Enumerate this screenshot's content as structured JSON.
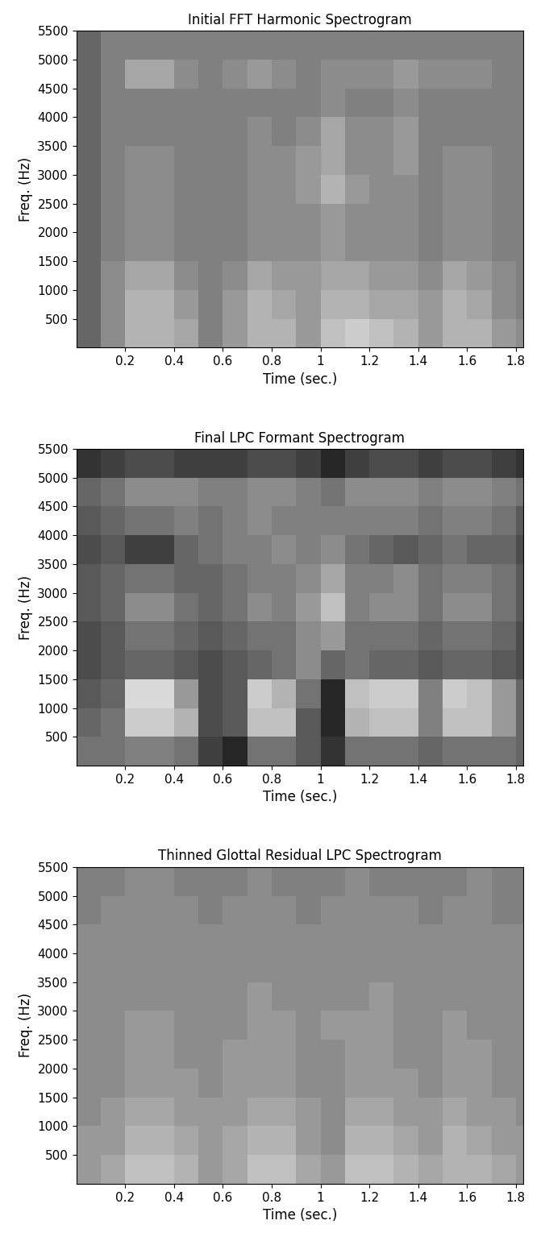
{
  "chart_data": [
    {
      "type": "heatmap",
      "title": "Initial FFT Harmonic Spectrogram",
      "x_label": "Time (sec.)",
      "y_label": "Freq. (Hz)",
      "xlim": [
        0,
        1.83
      ],
      "ylim": [
        0,
        5500
      ],
      "xticks": [
        0.2,
        0.4,
        0.6,
        0.8,
        1,
        1.2,
        1.4,
        1.6,
        1.8
      ],
      "yticks": [
        500,
        1000,
        1500,
        2000,
        2500,
        3000,
        3500,
        4000,
        4500,
        5000,
        5500
      ],
      "time_edges": [
        0,
        0.1,
        0.2,
        0.3,
        0.4,
        0.5,
        0.6,
        0.7,
        0.8,
        0.9,
        1.0,
        1.1,
        1.2,
        1.3,
        1.4,
        1.5,
        1.6,
        1.7,
        1.8,
        1.83
      ],
      "freq_edges": [
        0,
        500,
        1000,
        1500,
        2000,
        2500,
        3000,
        3500,
        4000,
        4500,
        5000,
        5500
      ],
      "value_range": [
        0,
        1
      ],
      "cells": [
        [
          0.4,
          0.55,
          0.7,
          0.7,
          0.65,
          0.5,
          0.6,
          0.7,
          0.7,
          0.6,
          0.75,
          0.8,
          0.75,
          0.7,
          0.6,
          0.7,
          0.7,
          0.6,
          0.55
        ],
        [
          0.4,
          0.55,
          0.7,
          0.7,
          0.6,
          0.5,
          0.6,
          0.7,
          0.65,
          0.6,
          0.7,
          0.7,
          0.65,
          0.65,
          0.6,
          0.7,
          0.65,
          0.55,
          0.5
        ],
        [
          0.4,
          0.55,
          0.65,
          0.65,
          0.55,
          0.5,
          0.55,
          0.65,
          0.6,
          0.6,
          0.65,
          0.65,
          0.6,
          0.6,
          0.55,
          0.65,
          0.6,
          0.55,
          0.5
        ],
        [
          0.4,
          0.5,
          0.55,
          0.55,
          0.5,
          0.5,
          0.5,
          0.55,
          0.55,
          0.55,
          0.6,
          0.55,
          0.55,
          0.55,
          0.5,
          0.55,
          0.55,
          0.5,
          0.5
        ],
        [
          0.4,
          0.5,
          0.55,
          0.55,
          0.5,
          0.5,
          0.5,
          0.55,
          0.55,
          0.55,
          0.6,
          0.55,
          0.55,
          0.55,
          0.5,
          0.55,
          0.55,
          0.5,
          0.5
        ],
        [
          0.4,
          0.5,
          0.55,
          0.55,
          0.5,
          0.5,
          0.5,
          0.55,
          0.55,
          0.6,
          0.7,
          0.6,
          0.55,
          0.55,
          0.5,
          0.55,
          0.55,
          0.5,
          0.5
        ],
        [
          0.4,
          0.5,
          0.55,
          0.55,
          0.5,
          0.5,
          0.5,
          0.55,
          0.55,
          0.6,
          0.65,
          0.55,
          0.55,
          0.6,
          0.5,
          0.55,
          0.55,
          0.5,
          0.5
        ],
        [
          0.4,
          0.5,
          0.5,
          0.5,
          0.5,
          0.5,
          0.5,
          0.55,
          0.5,
          0.55,
          0.65,
          0.55,
          0.55,
          0.6,
          0.5,
          0.5,
          0.5,
          0.5,
          0.5
        ],
        [
          0.4,
          0.5,
          0.5,
          0.5,
          0.5,
          0.5,
          0.5,
          0.5,
          0.5,
          0.5,
          0.55,
          0.5,
          0.5,
          0.55,
          0.5,
          0.5,
          0.5,
          0.5,
          0.5
        ],
        [
          0.4,
          0.5,
          0.65,
          0.65,
          0.55,
          0.5,
          0.55,
          0.6,
          0.55,
          0.5,
          0.55,
          0.55,
          0.55,
          0.6,
          0.55,
          0.55,
          0.55,
          0.5,
          0.5
        ],
        [
          0.4,
          0.5,
          0.5,
          0.5,
          0.5,
          0.5,
          0.5,
          0.5,
          0.5,
          0.5,
          0.5,
          0.5,
          0.5,
          0.5,
          0.5,
          0.5,
          0.5,
          0.5,
          0.5
        ]
      ]
    },
    {
      "type": "heatmap",
      "title": "Final LPC Formant Spectrogram",
      "x_label": "Time (sec.)",
      "y_label": "Freq. (Hz)",
      "xlim": [
        0,
        1.83
      ],
      "ylim": [
        0,
        5500
      ],
      "xticks": [
        0.2,
        0.4,
        0.6,
        0.8,
        1,
        1.2,
        1.4,
        1.6,
        1.8
      ],
      "yticks": [
        500,
        1000,
        1500,
        2000,
        2500,
        3000,
        3500,
        4000,
        4500,
        5000,
        5500
      ],
      "time_edges": [
        0,
        0.1,
        0.2,
        0.3,
        0.4,
        0.5,
        0.6,
        0.7,
        0.8,
        0.9,
        1.0,
        1.1,
        1.2,
        1.3,
        1.4,
        1.5,
        1.6,
        1.7,
        1.8,
        1.83
      ],
      "freq_edges": [
        0,
        500,
        1000,
        1500,
        2000,
        2500,
        3000,
        3500,
        4000,
        4500,
        5000,
        5500
      ],
      "value_range": [
        0,
        1
      ],
      "cells": [
        [
          0.45,
          0.45,
          0.5,
          0.5,
          0.45,
          0.25,
          0.15,
          0.45,
          0.45,
          0.35,
          0.2,
          0.45,
          0.45,
          0.45,
          0.4,
          0.45,
          0.45,
          0.45,
          0.4
        ],
        [
          0.4,
          0.45,
          0.8,
          0.8,
          0.7,
          0.3,
          0.35,
          0.75,
          0.75,
          0.35,
          0.15,
          0.7,
          0.75,
          0.75,
          0.5,
          0.75,
          0.75,
          0.6,
          0.4
        ],
        [
          0.35,
          0.4,
          0.85,
          0.85,
          0.6,
          0.3,
          0.35,
          0.8,
          0.7,
          0.45,
          0.15,
          0.75,
          0.8,
          0.8,
          0.5,
          0.8,
          0.75,
          0.6,
          0.4
        ],
        [
          0.3,
          0.35,
          0.4,
          0.4,
          0.35,
          0.3,
          0.35,
          0.4,
          0.45,
          0.55,
          0.4,
          0.45,
          0.4,
          0.4,
          0.35,
          0.4,
          0.4,
          0.35,
          0.3
        ],
        [
          0.3,
          0.35,
          0.45,
          0.45,
          0.4,
          0.35,
          0.4,
          0.45,
          0.45,
          0.55,
          0.6,
          0.45,
          0.45,
          0.45,
          0.4,
          0.45,
          0.45,
          0.4,
          0.3
        ],
        [
          0.35,
          0.4,
          0.55,
          0.55,
          0.45,
          0.4,
          0.45,
          0.55,
          0.5,
          0.6,
          0.75,
          0.5,
          0.55,
          0.55,
          0.45,
          0.55,
          0.55,
          0.45,
          0.35
        ],
        [
          0.35,
          0.4,
          0.45,
          0.45,
          0.4,
          0.4,
          0.45,
          0.5,
          0.5,
          0.55,
          0.65,
          0.5,
          0.5,
          0.55,
          0.45,
          0.5,
          0.5,
          0.45,
          0.35
        ],
        [
          0.3,
          0.35,
          0.25,
          0.25,
          0.4,
          0.45,
          0.5,
          0.5,
          0.55,
          0.5,
          0.55,
          0.45,
          0.4,
          0.35,
          0.4,
          0.45,
          0.4,
          0.4,
          0.3
        ],
        [
          0.35,
          0.4,
          0.45,
          0.45,
          0.5,
          0.45,
          0.5,
          0.55,
          0.5,
          0.5,
          0.5,
          0.5,
          0.5,
          0.5,
          0.45,
          0.5,
          0.5,
          0.45,
          0.35
        ],
        [
          0.4,
          0.45,
          0.55,
          0.55,
          0.55,
          0.5,
          0.5,
          0.55,
          0.55,
          0.5,
          0.45,
          0.55,
          0.55,
          0.55,
          0.5,
          0.55,
          0.55,
          0.5,
          0.45
        ],
        [
          0.2,
          0.25,
          0.3,
          0.3,
          0.25,
          0.25,
          0.25,
          0.3,
          0.3,
          0.25,
          0.15,
          0.25,
          0.3,
          0.3,
          0.25,
          0.3,
          0.3,
          0.25,
          0.2
        ]
      ]
    },
    {
      "type": "heatmap",
      "title": "Thinned Glottal Residual LPC Spectrogram",
      "x_label": "Time (sec.)",
      "y_label": "Freq. (Hz)",
      "xlim": [
        0,
        1.83
      ],
      "ylim": [
        0,
        5500
      ],
      "xticks": [
        0.2,
        0.4,
        0.6,
        0.8,
        1,
        1.2,
        1.4,
        1.6,
        1.8
      ],
      "yticks": [
        500,
        1000,
        1500,
        2000,
        2500,
        3000,
        3500,
        4000,
        4500,
        5000,
        5500
      ],
      "time_edges": [
        0,
        0.1,
        0.2,
        0.3,
        0.4,
        0.5,
        0.6,
        0.7,
        0.8,
        0.9,
        1.0,
        1.1,
        1.2,
        1.3,
        1.4,
        1.5,
        1.6,
        1.7,
        1.8,
        1.83
      ],
      "freq_edges": [
        0,
        500,
        1000,
        1500,
        2000,
        2500,
        3000,
        3500,
        4000,
        4500,
        5000,
        5500
      ],
      "value_range": [
        0,
        1
      ],
      "cells": [
        [
          0.6,
          0.65,
          0.75,
          0.75,
          0.7,
          0.6,
          0.65,
          0.75,
          0.75,
          0.65,
          0.6,
          0.75,
          0.75,
          0.7,
          0.65,
          0.7,
          0.7,
          0.65,
          0.6
        ],
        [
          0.6,
          0.6,
          0.7,
          0.7,
          0.65,
          0.6,
          0.65,
          0.7,
          0.7,
          0.6,
          0.55,
          0.7,
          0.7,
          0.65,
          0.6,
          0.7,
          0.65,
          0.6,
          0.6
        ],
        [
          0.55,
          0.6,
          0.65,
          0.65,
          0.6,
          0.6,
          0.6,
          0.65,
          0.65,
          0.6,
          0.55,
          0.65,
          0.65,
          0.6,
          0.6,
          0.65,
          0.6,
          0.6,
          0.55
        ],
        [
          0.55,
          0.55,
          0.6,
          0.6,
          0.6,
          0.55,
          0.6,
          0.6,
          0.6,
          0.55,
          0.55,
          0.6,
          0.6,
          0.6,
          0.55,
          0.6,
          0.6,
          0.55,
          0.55
        ],
        [
          0.55,
          0.55,
          0.6,
          0.6,
          0.55,
          0.55,
          0.6,
          0.6,
          0.6,
          0.55,
          0.55,
          0.6,
          0.6,
          0.55,
          0.55,
          0.6,
          0.6,
          0.55,
          0.55
        ],
        [
          0.55,
          0.55,
          0.6,
          0.6,
          0.55,
          0.55,
          0.55,
          0.6,
          0.6,
          0.55,
          0.6,
          0.6,
          0.6,
          0.55,
          0.55,
          0.6,
          0.55,
          0.55,
          0.55
        ],
        [
          0.55,
          0.55,
          0.55,
          0.55,
          0.55,
          0.55,
          0.55,
          0.6,
          0.55,
          0.55,
          0.55,
          0.55,
          0.6,
          0.55,
          0.55,
          0.55,
          0.55,
          0.55,
          0.55
        ],
        [
          0.55,
          0.55,
          0.55,
          0.55,
          0.55,
          0.55,
          0.55,
          0.55,
          0.55,
          0.55,
          0.55,
          0.55,
          0.55,
          0.55,
          0.55,
          0.55,
          0.55,
          0.55,
          0.55
        ],
        [
          0.55,
          0.55,
          0.55,
          0.55,
          0.55,
          0.55,
          0.55,
          0.55,
          0.55,
          0.55,
          0.55,
          0.55,
          0.55,
          0.55,
          0.55,
          0.55,
          0.55,
          0.55,
          0.55
        ],
        [
          0.5,
          0.55,
          0.55,
          0.55,
          0.55,
          0.5,
          0.55,
          0.55,
          0.55,
          0.5,
          0.55,
          0.55,
          0.55,
          0.55,
          0.5,
          0.55,
          0.55,
          0.5,
          0.5
        ],
        [
          0.5,
          0.5,
          0.55,
          0.55,
          0.5,
          0.5,
          0.5,
          0.55,
          0.5,
          0.5,
          0.5,
          0.55,
          0.5,
          0.5,
          0.5,
          0.5,
          0.55,
          0.5,
          0.5
        ]
      ]
    }
  ]
}
